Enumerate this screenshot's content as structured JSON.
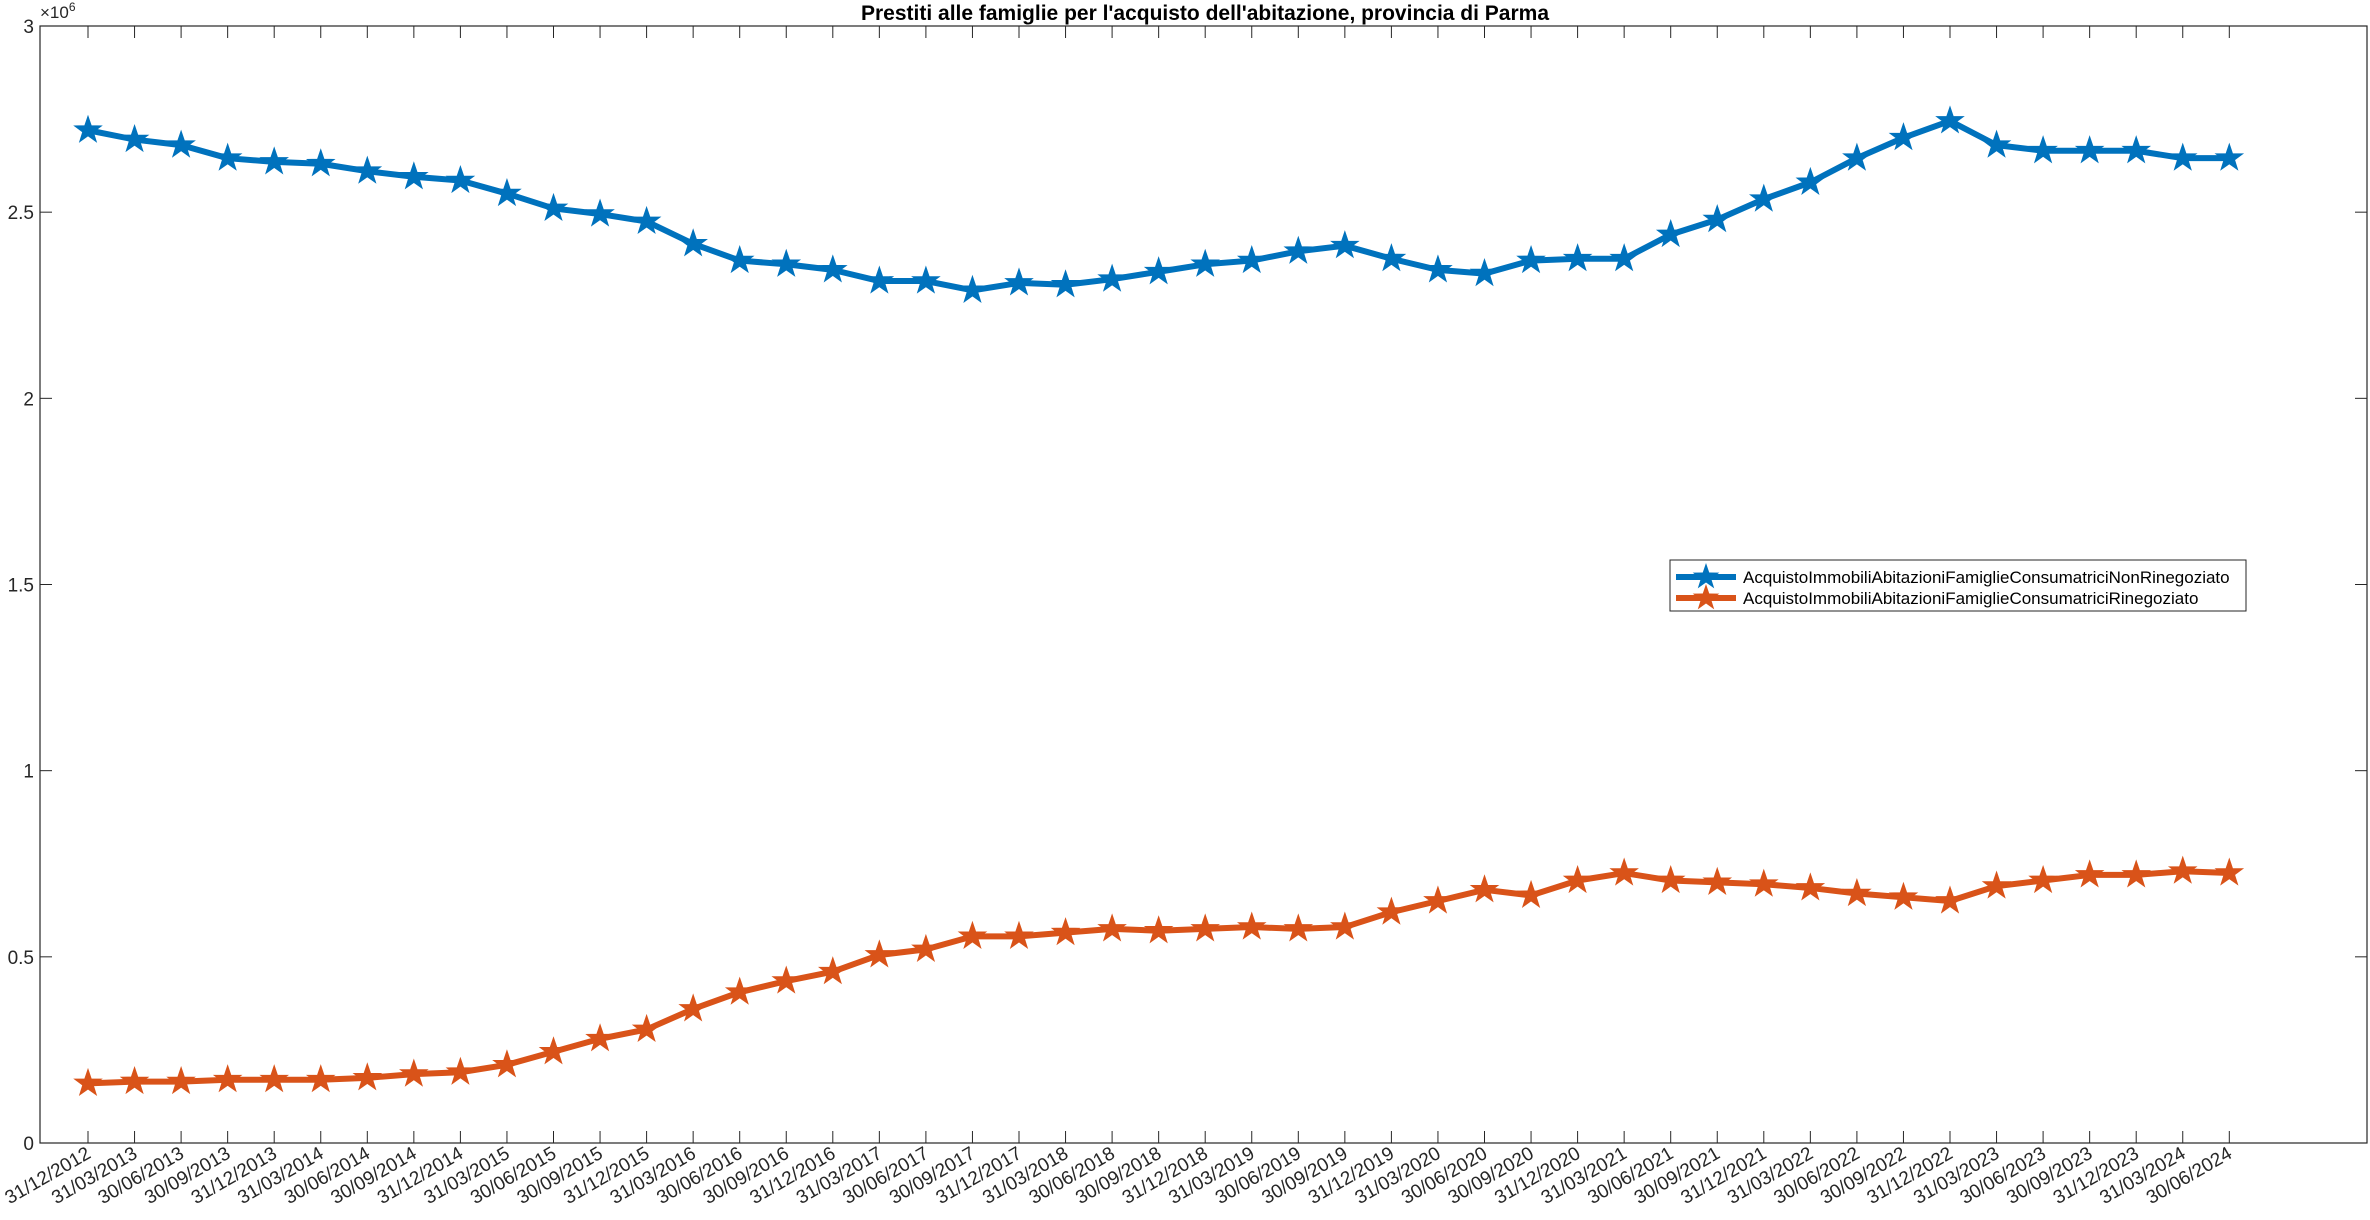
{
  "chart_data": {
    "type": "line",
    "title": "Prestiti alle famiglie per l'acquisto dell'abitazione, provincia di Parma",
    "xlabel": "",
    "ylabel": "",
    "ylim": [
      0,
      3000000
    ],
    "y_ticks": [
      0,
      500000,
      1000000,
      1500000,
      2000000,
      2500000,
      3000000
    ],
    "y_tick_labels": [
      "0",
      "0.5",
      "1",
      "1.5",
      "2",
      "2.5",
      "3"
    ],
    "y_exponent_label": "×10",
    "y_exponent_power": "6",
    "grid": false,
    "legend_position": "right",
    "categories": [
      "31/12/2012",
      "31/03/2013",
      "30/06/2013",
      "30/09/2013",
      "31/12/2013",
      "31/03/2014",
      "30/06/2014",
      "30/09/2014",
      "31/12/2014",
      "31/03/2015",
      "30/06/2015",
      "30/09/2015",
      "31/12/2015",
      "31/03/2016",
      "30/06/2016",
      "30/09/2016",
      "31/12/2016",
      "31/03/2017",
      "30/06/2017",
      "30/09/2017",
      "31/12/2017",
      "31/03/2018",
      "30/06/2018",
      "30/09/2018",
      "31/12/2018",
      "31/03/2019",
      "30/06/2019",
      "30/09/2019",
      "31/12/2019",
      "31/03/2020",
      "30/06/2020",
      "30/09/2020",
      "31/12/2020",
      "31/03/2021",
      "30/06/2021",
      "30/09/2021",
      "31/12/2021",
      "31/03/2022",
      "30/06/2022",
      "30/09/2022",
      "31/12/2022",
      "31/03/2023",
      "30/06/2023",
      "30/09/2023",
      "31/12/2023",
      "31/03/2024",
      "30/06/2024"
    ],
    "series": [
      {
        "name": "AcquistoImmobiliAbitazioniFamiglieConsumatriciNonRinegoziato",
        "color": "#0072BD",
        "values": [
          2720000,
          2695000,
          2680000,
          2645000,
          2635000,
          2630000,
          2610000,
          2595000,
          2585000,
          2550000,
          2510000,
          2495000,
          2475000,
          2415000,
          2370000,
          2360000,
          2345000,
          2315000,
          2315000,
          2290000,
          2310000,
          2305000,
          2320000,
          2340000,
          2360000,
          2370000,
          2395000,
          2410000,
          2375000,
          2345000,
          2335000,
          2370000,
          2375000,
          2375000,
          2440000,
          2480000,
          2535000,
          2580000,
          2645000,
          2700000,
          2745000,
          2680000,
          2665000,
          2665000,
          2665000,
          2645000,
          2645000
        ]
      },
      {
        "name": "AcquistoImmobiliAbitazioniFamiglieConsumatriciRinegoziato",
        "color": "#D95319",
        "values": [
          160000,
          165000,
          165000,
          170000,
          170000,
          170000,
          175000,
          185000,
          190000,
          210000,
          245000,
          280000,
          305000,
          360000,
          405000,
          435000,
          460000,
          505000,
          520000,
          555000,
          555000,
          565000,
          575000,
          570000,
          575000,
          580000,
          575000,
          580000,
          620000,
          650000,
          680000,
          665000,
          705000,
          725000,
          705000,
          700000,
          695000,
          685000,
          670000,
          660000,
          650000,
          690000,
          705000,
          720000,
          720000,
          730000,
          725000
        ]
      }
    ]
  }
}
